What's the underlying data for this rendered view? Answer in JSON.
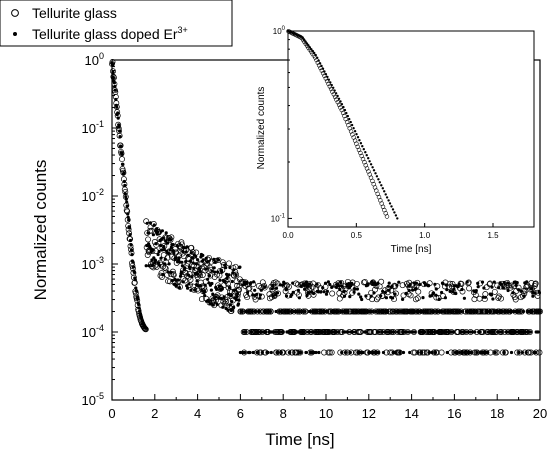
{
  "chart_data": [
    {
      "type": "scatter",
      "title": "",
      "xlabel": "Time [ns]",
      "ylabel": "Normalized counts",
      "xlim": [
        0,
        20
      ],
      "ylim": [
        1e-05,
        1
      ],
      "yscale": "log",
      "x_ticks": [
        0,
        2,
        4,
        6,
        8,
        10,
        12,
        14,
        16,
        18,
        20
      ],
      "y_ticks": [
        -5,
        -4,
        -3,
        -2,
        -1,
        0
      ],
      "legend": {
        "placement": "top-left"
      },
      "series": [
        {
          "name": "Tellurite glass",
          "marker": "open-circle",
          "decay_ns": 0.136,
          "background": 0.0003,
          "points": [
            [
              0.0,
              1.0
            ],
            [
              0.2,
              0.35
            ],
            [
              0.4,
              0.12
            ],
            [
              0.6,
              0.045
            ],
            [
              0.8,
              0.018
            ],
            [
              1.0,
              0.0075
            ],
            [
              1.2,
              0.0035
            ],
            [
              1.5,
              0.0018
            ],
            [
              2.0,
              0.0011
            ],
            [
              3.0,
              0.0008
            ],
            [
              4.0,
              0.0006
            ],
            [
              6.0,
              0.0004
            ],
            [
              10.0,
              0.0003
            ],
            [
              20.0,
              0.0003
            ]
          ]
        },
        {
          "name": "Tellurite glass doped Er",
          "name_superscript": "3+",
          "marker": "filled-dot",
          "decay_ns": 0.141,
          "background": 0.0003,
          "points": [
            [
              0.0,
              1.0
            ],
            [
              0.2,
              0.38
            ],
            [
              0.4,
              0.14
            ],
            [
              0.6,
              0.05
            ],
            [
              0.8,
              0.02
            ],
            [
              1.0,
              0.008
            ],
            [
              1.2,
              0.0038
            ],
            [
              1.5,
              0.002
            ],
            [
              2.0,
              0.0012
            ],
            [
              3.0,
              0.0009
            ],
            [
              4.0,
              0.0006
            ],
            [
              6.0,
              0.0004
            ],
            [
              10.0,
              0.0003
            ],
            [
              20.0,
              0.0003
            ]
          ]
        }
      ]
    },
    {
      "type": "scatter",
      "title": "",
      "xlabel": "Time [ns]",
      "ylabel": "Normalized counts",
      "xlim": [
        0,
        1.8
      ],
      "ylim": [
        0.09,
        1
      ],
      "yscale": "log",
      "x_ticks": [
        0.0,
        0.5,
        1.0,
        1.5
      ],
      "y_ticks": [
        -1,
        0
      ],
      "series": [
        {
          "name": "Tellurite glass",
          "marker": "open-circle",
          "x_end": 0.73,
          "points": [
            [
              0.0,
              1.0
            ],
            [
              0.1,
              0.92
            ],
            [
              0.2,
              0.72
            ],
            [
              0.4,
              0.37
            ],
            [
              0.6,
              0.17
            ],
            [
              0.73,
              0.1
            ]
          ]
        },
        {
          "name": "Tellurite glass doped Er",
          "marker": "filled-dot",
          "x_end": 0.8,
          "points": [
            [
              0.0,
              1.0
            ],
            [
              0.1,
              0.93
            ],
            [
              0.2,
              0.75
            ],
            [
              0.4,
              0.4
            ],
            [
              0.6,
              0.2
            ],
            [
              0.8,
              0.1
            ]
          ]
        }
      ]
    }
  ]
}
